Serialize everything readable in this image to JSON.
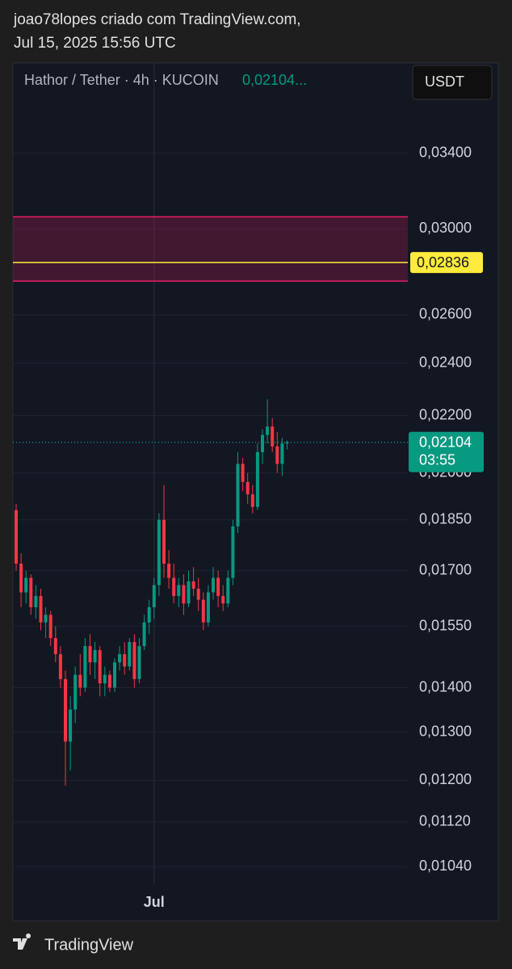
{
  "header": {
    "author": "joao78lopes criado com TradingView.com,",
    "date": "Jul 15, 2025 15:56 UTC"
  },
  "chart_data": {
    "type": "candlestick",
    "title": "Hathor / Tether · 4h · KUCOIN",
    "last_value_text": "0,02104...",
    "currency": "USDT",
    "categories": [
      null,
      null,
      null,
      null,
      null,
      null,
      null,
      null,
      null,
      null,
      null,
      null,
      null,
      null,
      null,
      null,
      null,
      null,
      null,
      null,
      null,
      null,
      null,
      null,
      null,
      null,
      null,
      null,
      "Jul",
      null,
      null,
      null,
      null,
      null,
      null,
      null,
      null,
      null,
      null,
      null,
      null,
      null,
      null,
      null,
      null,
      null,
      null,
      null,
      null,
      null,
      null,
      null,
      null,
      null,
      null,
      null
    ],
    "open": [
      0.0188,
      0.0172,
      0.0164,
      0.0168,
      0.016,
      0.0163,
      0.0156,
      0.0158,
      0.0152,
      0.0148,
      0.0142,
      0.0128,
      0.0135,
      0.0143,
      0.014,
      0.015,
      0.0146,
      0.0149,
      0.0141,
      0.0143,
      0.014,
      0.0146,
      0.0148,
      0.0145,
      0.0151,
      0.0142,
      0.015,
      0.0156,
      0.016,
      0.0166,
      0.0185,
      0.0172,
      0.0168,
      0.0163,
      0.0166,
      0.0161,
      0.0167,
      0.0165,
      0.0162,
      0.0156,
      0.0164,
      0.0168,
      0.0163,
      0.0161,
      0.0168,
      0.0183,
      0.0203,
      0.0197,
      0.0193,
      0.0189,
      0.0207,
      0.0213,
      0.0216,
      0.0209,
      0.0203,
      0.021
    ],
    "high": [
      0.019,
      0.0175,
      0.017,
      0.0169,
      0.0166,
      0.0165,
      0.016,
      0.0159,
      0.0155,
      0.015,
      0.0144,
      0.0138,
      0.0145,
      0.0148,
      0.0152,
      0.0153,
      0.0151,
      0.015,
      0.0145,
      0.0144,
      0.0147,
      0.015,
      0.0151,
      0.0152,
      0.0153,
      0.0152,
      0.0158,
      0.0162,
      0.0168,
      0.0187,
      0.0196,
      0.0176,
      0.0172,
      0.0168,
      0.0169,
      0.017,
      0.0171,
      0.0168,
      0.0164,
      0.0166,
      0.0171,
      0.017,
      0.0166,
      0.017,
      0.0185,
      0.0207,
      0.0205,
      0.02,
      0.0196,
      0.021,
      0.0215,
      0.0226,
      0.0219,
      0.0214,
      0.0212,
      0.0211
    ],
    "low": [
      0.017,
      0.016,
      0.0161,
      0.0158,
      0.0157,
      0.0154,
      0.0152,
      0.015,
      0.0146,
      0.014,
      0.0119,
      0.0122,
      0.0132,
      0.0138,
      0.0139,
      0.0143,
      0.0142,
      0.0138,
      0.0138,
      0.0139,
      0.0139,
      0.0144,
      0.0143,
      0.0144,
      0.014,
      0.0141,
      0.0149,
      0.0153,
      0.0157,
      0.0163,
      0.0168,
      0.0165,
      0.0161,
      0.016,
      0.0158,
      0.016,
      0.0163,
      0.0159,
      0.0154,
      0.0155,
      0.0162,
      0.016,
      0.0159,
      0.016,
      0.0166,
      0.0181,
      0.0194,
      0.019,
      0.0187,
      0.0188,
      0.0203,
      0.021,
      0.0207,
      0.02,
      0.0199,
      0.0208
    ],
    "close": [
      0.0172,
      0.0164,
      0.0168,
      0.016,
      0.0163,
      0.0156,
      0.0158,
      0.0152,
      0.0148,
      0.0142,
      0.0128,
      0.0135,
      0.0143,
      0.014,
      0.015,
      0.0146,
      0.0149,
      0.0141,
      0.0143,
      0.014,
      0.0146,
      0.0148,
      0.0145,
      0.0151,
      0.0142,
      0.015,
      0.0156,
      0.016,
      0.0166,
      0.0185,
      0.0172,
      0.0168,
      0.0163,
      0.0166,
      0.0161,
      0.0167,
      0.0165,
      0.0162,
      0.0156,
      0.0164,
      0.0168,
      0.0163,
      0.0161,
      0.0168,
      0.0183,
      0.0203,
      0.0197,
      0.0193,
      0.0189,
      0.0207,
      0.0213,
      0.0216,
      0.0209,
      0.0203,
      0.021,
      0.02104
    ],
    "up_color": "#089981",
    "down_color": "#f23645",
    "log_scale": true,
    "grid": true,
    "ylim": [
      0.0101,
      0.0394
    ],
    "yticks": [
      {
        "value": 0.034,
        "label": "0,03400"
      },
      {
        "value": 0.03,
        "label": "0,03000"
      },
      {
        "value": 0.026,
        "label": "0,02600"
      },
      {
        "value": 0.024,
        "label": "0,02400"
      },
      {
        "value": 0.022,
        "label": "0,02200"
      },
      {
        "value": 0.02,
        "label": "0,02000"
      },
      {
        "value": 0.0185,
        "label": "0,01850"
      },
      {
        "value": 0.017,
        "label": "0,01700"
      },
      {
        "value": 0.0155,
        "label": "0,01550"
      },
      {
        "value": 0.014,
        "label": "0,01400"
      },
      {
        "value": 0.013,
        "label": "0,01300"
      },
      {
        "value": 0.012,
        "label": "0,01200"
      },
      {
        "value": 0.0112,
        "label": "0,01120"
      },
      {
        "value": 0.0104,
        "label": "0,01040"
      }
    ],
    "zone": {
      "from": 0.0275,
      "to": 0.0306,
      "color": "#e91e63"
    },
    "price_line": {
      "value": 0.02836,
      "label": "0,02836",
      "color": "#ffeb3b"
    },
    "last_price": {
      "value": 0.02104,
      "label": "0,02104",
      "countdown": "03:55",
      "color": "#089981"
    }
  },
  "footer": {
    "brand": "TradingView"
  }
}
